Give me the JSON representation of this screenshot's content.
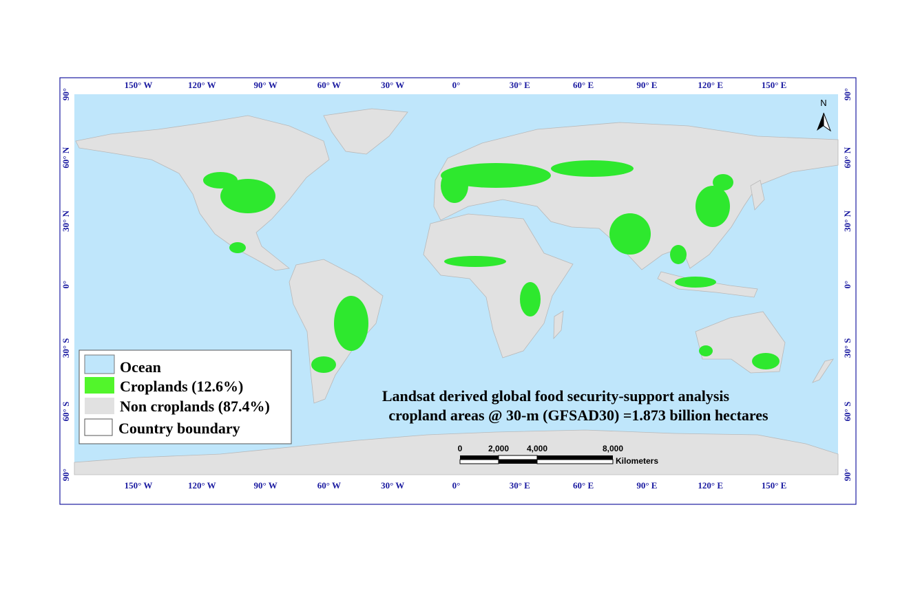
{
  "map": {
    "title_lines": [
      "Landsat derived global food security-support analysis",
      "cropland areas @ 30-m (GFSAD30) =1.873 billion hectares"
    ],
    "longitude_labels": [
      "150° W",
      "120° W",
      "90° W",
      "60° W",
      "30° W",
      "0°",
      "30° E",
      "60° E",
      "90° E",
      "120° E",
      "150° E"
    ],
    "latitude_labels": [
      "90°",
      "60° N",
      "30° N",
      "0°",
      "30° S",
      "60° S",
      "90°"
    ],
    "legend": [
      "Ocean",
      "Croplands (12.6%)",
      "Non croplands (87.4%)",
      "Country boundary"
    ],
    "scale_bar": {
      "labels": [
        "0",
        "2,000",
        "4,000",
        "8,000"
      ],
      "unit": "Kilometers"
    },
    "north_label": "N"
  }
}
